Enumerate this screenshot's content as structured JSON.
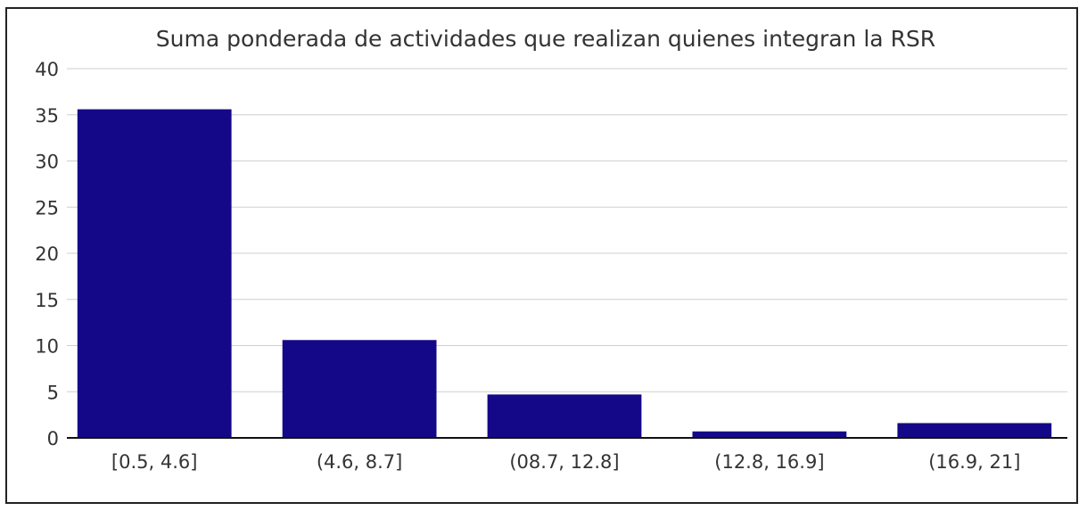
{
  "chart_data": {
    "type": "bar",
    "title": "Suma ponderada de actividades que realizan quienes integran la RSR",
    "xlabel": "",
    "ylabel": "",
    "categories": [
      "[0.5, 4.6]",
      "(4.6, 8.7]",
      "(08.7, 12.8]",
      "(12.8, 16.9]",
      "(16.9, 21]"
    ],
    "values": [
      35.6,
      10.6,
      4.7,
      0.7,
      1.6
    ],
    "ylim": [
      0,
      40
    ],
    "yticks": [
      "0",
      "5",
      "10",
      "15",
      "20",
      "25",
      "30",
      "35",
      "40"
    ],
    "grid": true,
    "legend": "none",
    "bar_color": "#140888"
  }
}
